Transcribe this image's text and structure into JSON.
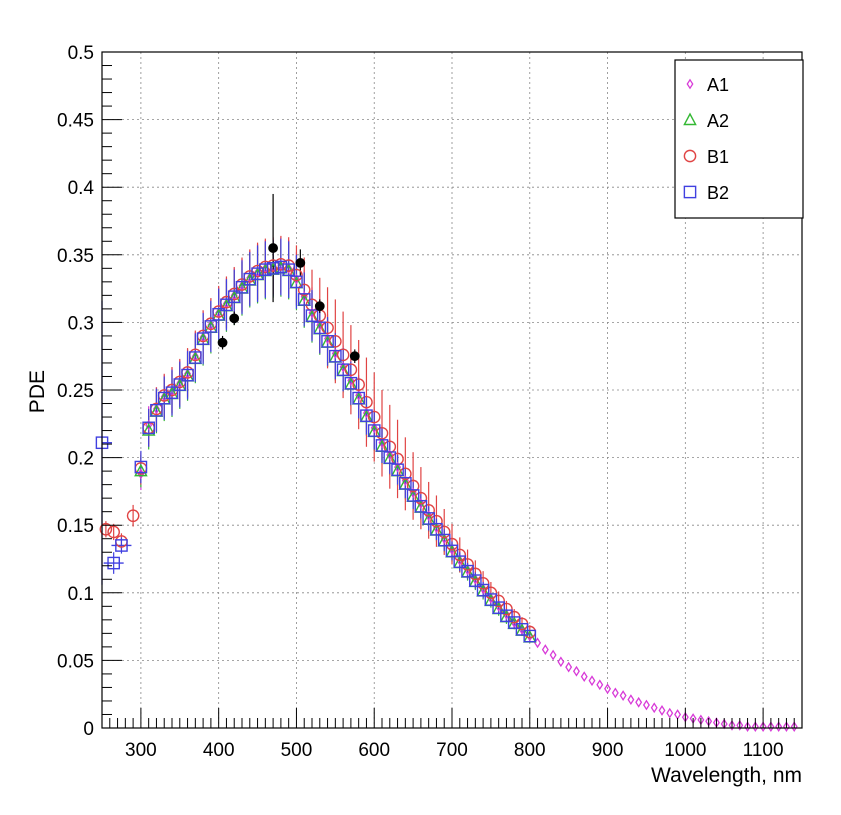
{
  "chart_data": {
    "type": "scatter",
    "title": "",
    "xlabel": "Wavelength, nm",
    "ylabel": "PDE",
    "xlim": [
      250,
      1150
    ],
    "ylim": [
      0,
      0.5
    ],
    "x_ticks": [
      300,
      400,
      500,
      600,
      700,
      800,
      900,
      1000,
      1100
    ],
    "y_ticks": [
      0,
      0.05,
      0.1,
      0.15,
      0.2,
      0.25,
      0.3,
      0.35,
      0.4,
      0.45,
      0.5
    ],
    "x_tick_labels": [
      "300",
      "400",
      "500",
      "600",
      "700",
      "800",
      "900",
      "1000",
      "1100"
    ],
    "y_tick_labels": [
      "0",
      "0.05",
      "0.1",
      "0.15",
      "0.2",
      "0.25",
      "0.3",
      "0.35",
      "0.4",
      "0.45",
      "0.5"
    ],
    "grid": true,
    "legend_position": "top-right",
    "series": [
      {
        "name": "A1",
        "marker": "diamond",
        "color": "#d83bd8",
        "x": [
          300,
          310,
          320,
          330,
          340,
          350,
          360,
          370,
          380,
          390,
          400,
          410,
          420,
          430,
          440,
          450,
          460,
          470,
          480,
          490,
          500,
          510,
          520,
          530,
          540,
          550,
          560,
          570,
          580,
          590,
          600,
          610,
          620,
          630,
          640,
          650,
          660,
          670,
          680,
          690,
          700,
          710,
          720,
          730,
          740,
          750,
          760,
          770,
          780,
          790,
          800,
          810,
          820,
          830,
          840,
          850,
          860,
          870,
          880,
          890,
          900,
          910,
          920,
          930,
          940,
          950,
          960,
          970,
          980,
          990,
          1000,
          1010,
          1020,
          1030,
          1040,
          1050,
          1060,
          1070,
          1080,
          1090,
          1100,
          1110,
          1120,
          1130,
          1140
        ],
        "y": [
          0.188,
          0.224,
          0.236,
          0.245,
          0.249,
          0.255,
          0.262,
          0.275,
          0.289,
          0.298,
          0.307,
          0.314,
          0.32,
          0.327,
          0.333,
          0.337,
          0.34,
          0.341,
          0.342,
          0.34,
          0.332,
          0.319,
          0.307,
          0.298,
          0.288,
          0.277,
          0.267,
          0.257,
          0.246,
          0.233,
          0.222,
          0.211,
          0.202,
          0.193,
          0.183,
          0.174,
          0.166,
          0.157,
          0.148,
          0.14,
          0.132,
          0.124,
          0.117,
          0.11,
          0.103,
          0.096,
          0.09,
          0.084,
          0.078,
          0.073,
          0.068,
          0.063,
          0.058,
          0.054,
          0.049,
          0.045,
          0.042,
          0.038,
          0.035,
          0.032,
          0.029,
          0.026,
          0.024,
          0.021,
          0.019,
          0.017,
          0.015,
          0.013,
          0.011,
          0.01,
          0.008,
          0.007,
          0.006,
          0.005,
          0.004,
          0.003,
          0.002,
          0.002,
          0.001,
          0.001,
          0.001,
          0.001,
          0.001,
          0.001,
          0.001
        ],
        "y_error": [
          0.012,
          0.014,
          0.016,
          0.016,
          0.017,
          0.017,
          0.018,
          0.018,
          0.019,
          0.019,
          0.019,
          0.019,
          0.02,
          0.02,
          0.02,
          0.021,
          0.021,
          0.021,
          0.021,
          0.021,
          0.02,
          0.02,
          0.019,
          0.019,
          0.018,
          0.017,
          0.016,
          0.016,
          0.015,
          0.014,
          0.014,
          0.013,
          0.012,
          0.011,
          0.011,
          0.01,
          0.009,
          0.009,
          0.008,
          0.008,
          0.007,
          0.007,
          0.006,
          0.006,
          0.006,
          0.005,
          0.005,
          0.005,
          0.004,
          0.004,
          0.004,
          0,
          0,
          0,
          0,
          0,
          0,
          0,
          0,
          0,
          0,
          0,
          0,
          0,
          0,
          0,
          0,
          0,
          0,
          0,
          0,
          0,
          0,
          0,
          0,
          0,
          0,
          0,
          0,
          0,
          0,
          0,
          0,
          0,
          0
        ]
      },
      {
        "name": "A2",
        "marker": "triangle",
        "color": "#33b833",
        "x": [
          300,
          310,
          320,
          330,
          340,
          350,
          360,
          370,
          380,
          390,
          400,
          410,
          420,
          430,
          440,
          450,
          460,
          470,
          480,
          490,
          500,
          510,
          520,
          530,
          540,
          550,
          560,
          570,
          580,
          590,
          600,
          610,
          620,
          630,
          640,
          650,
          660,
          670,
          680,
          690,
          700,
          710,
          720,
          730,
          740,
          750,
          760,
          770,
          780,
          790,
          800
        ],
        "y": [
          0.19,
          0.22,
          0.234,
          0.243,
          0.247,
          0.253,
          0.26,
          0.273,
          0.287,
          0.296,
          0.305,
          0.312,
          0.318,
          0.325,
          0.331,
          0.335,
          0.338,
          0.339,
          0.34,
          0.338,
          0.329,
          0.316,
          0.304,
          0.295,
          0.285,
          0.274,
          0.264,
          0.254,
          0.243,
          0.23,
          0.219,
          0.208,
          0.199,
          0.19,
          0.18,
          0.171,
          0.163,
          0.154,
          0.146,
          0.138,
          0.13,
          0.122,
          0.115,
          0.108,
          0.101,
          0.094,
          0.088,
          0.082,
          0.077,
          0.072,
          0.067
        ],
        "y_error": [
          0.012,
          0.014,
          0.016,
          0.016,
          0.017,
          0.017,
          0.018,
          0.018,
          0.019,
          0.019,
          0.019,
          0.019,
          0.02,
          0.02,
          0.02,
          0.021,
          0.021,
          0.021,
          0.021,
          0.021,
          0.02,
          0.02,
          0.019,
          0.019,
          0.018,
          0.017,
          0.016,
          0.016,
          0.015,
          0.014,
          0.014,
          0.013,
          0.012,
          0.011,
          0.011,
          0.01,
          0.009,
          0.009,
          0.008,
          0.008,
          0.007,
          0.007,
          0.006,
          0.006,
          0.006,
          0.005,
          0.005,
          0.005,
          0.004,
          0.004,
          0.004
        ]
      },
      {
        "name": "B1",
        "marker": "circle",
        "color": "#e04444",
        "x": [
          255,
          265,
          275,
          290,
          300,
          310,
          320,
          330,
          340,
          350,
          360,
          370,
          380,
          390,
          400,
          410,
          420,
          430,
          440,
          450,
          460,
          470,
          480,
          490,
          500,
          510,
          520,
          530,
          540,
          550,
          560,
          570,
          580,
          590,
          600,
          610,
          620,
          630,
          640,
          650,
          660,
          670,
          680,
          690,
          700,
          710,
          720,
          730,
          740,
          750,
          760,
          770,
          780,
          790,
          800
        ],
        "y": [
          0.147,
          0.145,
          0.138,
          0.157,
          0.192,
          0.222,
          0.236,
          0.246,
          0.25,
          0.256,
          0.263,
          0.276,
          0.29,
          0.299,
          0.308,
          0.315,
          0.321,
          0.328,
          0.334,
          0.338,
          0.341,
          0.342,
          0.343,
          0.342,
          0.335,
          0.324,
          0.313,
          0.305,
          0.296,
          0.286,
          0.276,
          0.265,
          0.254,
          0.241,
          0.23,
          0.218,
          0.208,
          0.199,
          0.188,
          0.179,
          0.17,
          0.161,
          0.153,
          0.145,
          0.136,
          0.128,
          0.121,
          0.114,
          0.107,
          0.1,
          0.094,
          0.088,
          0.082,
          0.077,
          0.071
        ],
        "y_error": [
          0.006,
          0.006,
          0.006,
          0.008,
          0.012,
          0.014,
          0.016,
          0.016,
          0.017,
          0.017,
          0.018,
          0.018,
          0.019,
          0.019,
          0.019,
          0.019,
          0.02,
          0.02,
          0.02,
          0.021,
          0.021,
          0.021,
          0.021,
          0.021,
          0.022,
          0.024,
          0.026,
          0.028,
          0.03,
          0.031,
          0.032,
          0.033,
          0.033,
          0.033,
          0.033,
          0.032,
          0.031,
          0.029,
          0.027,
          0.025,
          0.023,
          0.021,
          0.019,
          0.017,
          0.015,
          0.013,
          0.011,
          0.01,
          0.009,
          0.008,
          0.007,
          0.006,
          0.006,
          0.005,
          0.005
        ]
      },
      {
        "name": "B2",
        "marker": "square",
        "color": "#4040e0",
        "x": [
          250,
          265,
          275,
          300,
          310,
          320,
          330,
          340,
          350,
          360,
          370,
          380,
          390,
          400,
          410,
          420,
          430,
          440,
          450,
          460,
          470,
          480,
          490,
          500,
          510,
          520,
          530,
          540,
          550,
          560,
          570,
          580,
          590,
          600,
          610,
          620,
          630,
          640,
          650,
          660,
          670,
          680,
          690,
          700,
          710,
          720,
          730,
          740,
          750,
          760,
          770,
          780,
          790,
          800
        ],
        "y": [
          0.211,
          0.122,
          0.135,
          0.193,
          0.222,
          0.235,
          0.244,
          0.248,
          0.254,
          0.261,
          0.274,
          0.288,
          0.297,
          0.306,
          0.313,
          0.319,
          0.326,
          0.332,
          0.336,
          0.339,
          0.34,
          0.341,
          0.339,
          0.33,
          0.317,
          0.305,
          0.296,
          0.286,
          0.275,
          0.265,
          0.255,
          0.244,
          0.231,
          0.22,
          0.209,
          0.2,
          0.191,
          0.181,
          0.172,
          0.164,
          0.155,
          0.147,
          0.139,
          0.131,
          0.123,
          0.116,
          0.109,
          0.102,
          0.095,
          0.089,
          0.083,
          0.078,
          0.073,
          0.068
        ],
        "y_error": [
          0.105,
          0.008,
          0.006,
          0.012,
          0.014,
          0.016,
          0.016,
          0.017,
          0.017,
          0.018,
          0.018,
          0.019,
          0.019,
          0.019,
          0.019,
          0.02,
          0.02,
          0.02,
          0.021,
          0.021,
          0.021,
          0.021,
          0.021,
          0.02,
          0.02,
          0.019,
          0.019,
          0.018,
          0.017,
          0.016,
          0.016,
          0.015,
          0.014,
          0.014,
          0.013,
          0.012,
          0.011,
          0.011,
          0.01,
          0.009,
          0.009,
          0.008,
          0.008,
          0.007,
          0.007,
          0.006,
          0.006,
          0.006,
          0.005,
          0.005,
          0.005,
          0.004,
          0.004,
          0.004
        ]
      },
      {
        "name": "",
        "marker": "filled-circle",
        "color": "#000000",
        "x": [
          405,
          420,
          470,
          505,
          530,
          575
        ],
        "y": [
          0.285,
          0.303,
          0.355,
          0.344,
          0.312,
          0.275
        ],
        "y_error": [
          0.005,
          0.005,
          0.04,
          0.01,
          0.005,
          0.005
        ]
      }
    ]
  }
}
